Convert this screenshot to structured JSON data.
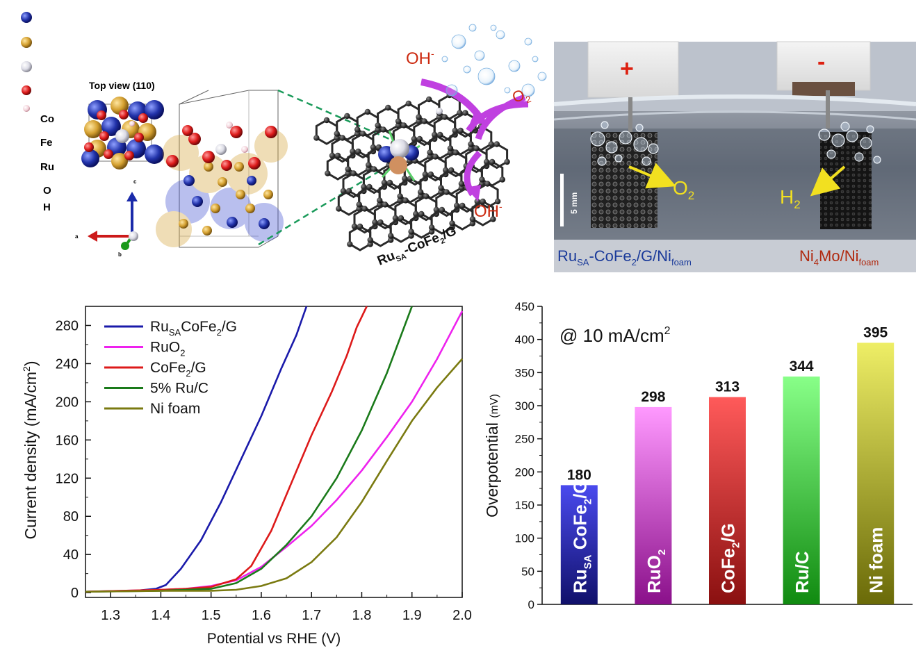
{
  "structure_panel": {
    "legend": [
      "Co",
      "Fe",
      "Ru",
      "O",
      "H"
    ],
    "legend_colors": [
      "#2233aa",
      "#d4a030",
      "#e8e8ee",
      "#dd1a1a",
      "#f2d0d8"
    ],
    "top_view_label": "Top view (110)",
    "axes": {
      "a": "a",
      "b": "b",
      "c": "c"
    },
    "catalyst_label_main": "Ru",
    "catalyst_label_sub": "SA",
    "catalyst_label_rest": "-CoFe",
    "catalyst_label_sub2": "2",
    "catalyst_label_end": "/G",
    "oh_label": "OH",
    "oh_sup": "-",
    "o2_label": "O",
    "o2_sub": "2"
  },
  "photo_panel": {
    "plus": "+",
    "minus": "-",
    "scale": "5 mm",
    "o2": "O",
    "o2_sub": "2",
    "h2": "H",
    "h2_sub": "2",
    "anode_main": "Ru",
    "anode_sub": "SA",
    "anode_mid": "-CoFe",
    "anode_sub2": "2",
    "anode_mid2": "/G/Ni",
    "anode_sub3": "foam",
    "cathode_main": "Ni",
    "cathode_sub": "4",
    "cathode_mid": "Mo/Ni",
    "cathode_sub2": "foam"
  },
  "chart_data": [
    {
      "type": "line",
      "xlabel": "Potential vs RHE (V)",
      "ylabel_main": "Current density  (mA/cm",
      "ylabel_sup": "2",
      "ylabel_end": ")",
      "xlim": [
        1.25,
        2.0
      ],
      "ylim": [
        -5,
        300
      ],
      "xticks": [
        "1.3",
        "1.4",
        "1.5",
        "1.6",
        "1.7",
        "1.8",
        "1.9",
        "2.0"
      ],
      "yticks": [
        "0",
        "40",
        "80",
        "120",
        "160",
        "200",
        "240",
        "280"
      ],
      "legend_position": "top-left",
      "series": [
        {
          "name": "RuSACoFe2/G",
          "legend_main": "Ru",
          "legend_sub": "SA",
          "legend_mid": "CoFe",
          "legend_sub2": "2",
          "legend_end": "/G",
          "color": "#1a1aaa",
          "x": [
            1.25,
            1.35,
            1.39,
            1.41,
            1.44,
            1.48,
            1.52,
            1.56,
            1.6,
            1.64,
            1.67,
            1.69
          ],
          "y": [
            1,
            2,
            4,
            8,
            25,
            55,
            95,
            140,
            185,
            235,
            270,
            300
          ]
        },
        {
          "name": "RuO2",
          "legend_main": "RuO",
          "legend_sub": "2",
          "color": "#ee22ee",
          "x": [
            1.25,
            1.4,
            1.45,
            1.5,
            1.55,
            1.6,
            1.65,
            1.7,
            1.75,
            1.8,
            1.85,
            1.9,
            1.95,
            2.0
          ],
          "y": [
            1,
            3,
            4,
            7,
            13,
            27,
            48,
            70,
            97,
            128,
            163,
            200,
            245,
            295
          ]
        },
        {
          "name": "CoFe2/G",
          "legend_main": "CoFe",
          "legend_sub": "2",
          "legend_end": "/G",
          "color": "#dd1a1a",
          "x": [
            1.25,
            1.4,
            1.45,
            1.5,
            1.55,
            1.58,
            1.62,
            1.66,
            1.7,
            1.74,
            1.77,
            1.79,
            1.81
          ],
          "y": [
            1,
            3,
            4,
            6,
            14,
            28,
            65,
            115,
            165,
            210,
            248,
            278,
            300
          ]
        },
        {
          "name": "5% Ru/C",
          "color": "#1a7a1a",
          "x": [
            1.25,
            1.4,
            1.45,
            1.5,
            1.55,
            1.6,
            1.65,
            1.7,
            1.75,
            1.8,
            1.85,
            1.9
          ],
          "y": [
            1,
            2,
            3,
            4,
            10,
            25,
            50,
            80,
            120,
            170,
            230,
            300
          ]
        },
        {
          "name": "Ni foam",
          "color": "#7a7a10",
          "x": [
            1.25,
            1.4,
            1.5,
            1.55,
            1.6,
            1.65,
            1.7,
            1.75,
            1.8,
            1.85,
            1.9,
            1.95,
            2.0
          ],
          "y": [
            1,
            2,
            2,
            3,
            7,
            15,
            32,
            58,
            95,
            138,
            180,
            215,
            245
          ]
        }
      ]
    },
    {
      "type": "bar",
      "annotation_main": "@ 10 mA/cm",
      "annotation_sup": "2",
      "ylabel_main": "Overpotential ",
      "ylabel_unit": "(mV)",
      "ylim": [
        0,
        450
      ],
      "yticks": [
        "0",
        "50",
        "100",
        "150",
        "200",
        "250",
        "300",
        "350",
        "400",
        "450"
      ],
      "categories": [
        "RuSA CoFe2/G",
        "RuO2",
        "CoFe2/G",
        "Ru/C",
        "Ni foam"
      ],
      "values": [
        180,
        298,
        313,
        344,
        395
      ],
      "value_labels": [
        "180",
        "298",
        "313",
        "344",
        "395"
      ],
      "cat_parts": [
        {
          "main": "Ru",
          "sub": "SA",
          "mid": " CoFe",
          "sub2": "2",
          "end": "/G"
        },
        {
          "main": "RuO",
          "sub": "2",
          "mid": "",
          "sub2": "",
          "end": ""
        },
        {
          "main": "CoFe",
          "sub": "2",
          "mid": "/G",
          "sub2": "",
          "end": ""
        },
        {
          "main": "Ru/C",
          "sub": "",
          "mid": "",
          "sub2": "",
          "end": ""
        },
        {
          "main": "Ni foam",
          "sub": "",
          "mid": "",
          "sub2": "",
          "end": ""
        }
      ],
      "bar_colors": [
        [
          "#4a4aee",
          "#10106a"
        ],
        [
          "#ff99ff",
          "#8a108a"
        ],
        [
          "#ff5a5a",
          "#8a1010"
        ],
        [
          "#88ff88",
          "#108a10"
        ],
        [
          "#eeee66",
          "#6a6a08"
        ]
      ]
    }
  ]
}
